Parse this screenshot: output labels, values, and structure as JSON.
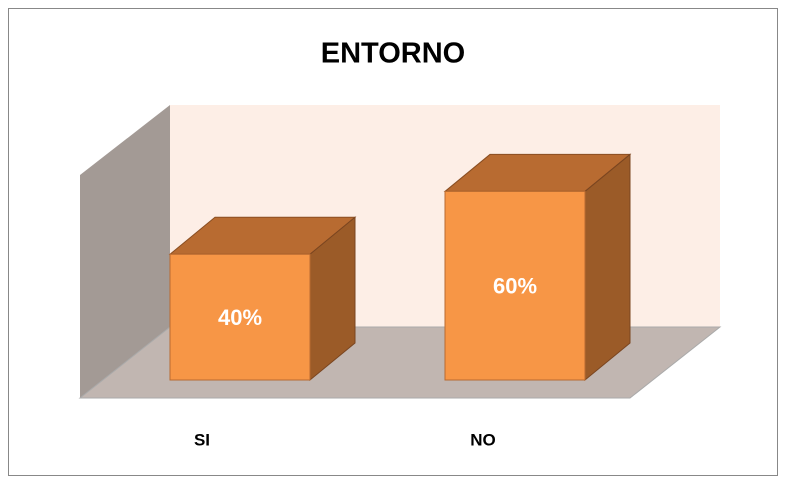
{
  "chart_data": {
    "type": "bar3d",
    "title": "ENTORNO",
    "categories": [
      "SI",
      "NO"
    ],
    "values": [
      40,
      60
    ],
    "value_labels": [
      "40%",
      "60%"
    ],
    "color": "#f79646",
    "ylim": [
      0,
      70
    ]
  }
}
